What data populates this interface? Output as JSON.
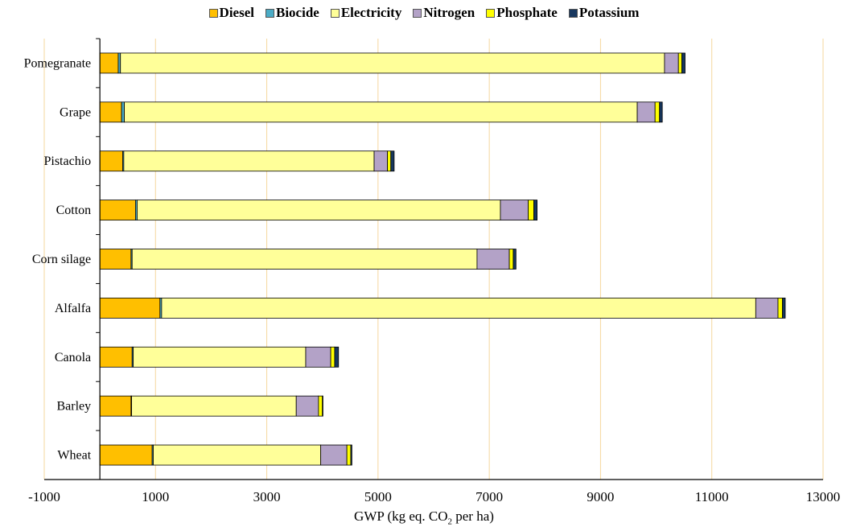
{
  "chart_data": {
    "type": "bar",
    "orientation": "horizontal",
    "stacked": true,
    "categories": [
      "Pomegranate",
      "Grape",
      "Pistachio",
      "Cotton",
      "Corn silage",
      "Alfalfa",
      "Canola",
      "Barley",
      "Wheat"
    ],
    "series": [
      {
        "name": "Diesel",
        "color": "#FFBF00",
        "values": [
          330,
          390,
          410,
          640,
          560,
          1080,
          580,
          560,
          940
        ]
      },
      {
        "name": "Biocide",
        "color": "#4BACC6",
        "values": [
          40,
          50,
          20,
          30,
          20,
          30,
          20,
          10,
          20
        ]
      },
      {
        "name": "Electricity",
        "color": "#FFFF99",
        "values": [
          9780,
          9220,
          4500,
          6530,
          6200,
          10680,
          3100,
          2960,
          3010
        ]
      },
      {
        "name": "Nitrogen",
        "color": "#B3A2C7",
        "values": [
          250,
          320,
          240,
          500,
          580,
          400,
          450,
          400,
          470
        ]
      },
      {
        "name": "Phosphate",
        "color": "#FFFF00",
        "values": [
          60,
          80,
          60,
          100,
          70,
          80,
          70,
          70,
          70
        ]
      },
      {
        "name": "Potassium",
        "color": "#17375E",
        "values": [
          60,
          50,
          60,
          60,
          50,
          50,
          70,
          10,
          20
        ]
      }
    ],
    "xlabel_main": "GWP (kg eq. CO",
    "xlabel_sub": "2",
    "xlabel_tail": " per ha)",
    "xlim": [
      -1000,
      13000
    ],
    "xticks": [
      "-1000",
      "1000",
      "3000",
      "5000",
      "7000",
      "9000",
      "11000",
      "13000"
    ],
    "gridlines": "vertical",
    "gridline_color": "#F5D79E",
    "legend_position": "top"
  }
}
